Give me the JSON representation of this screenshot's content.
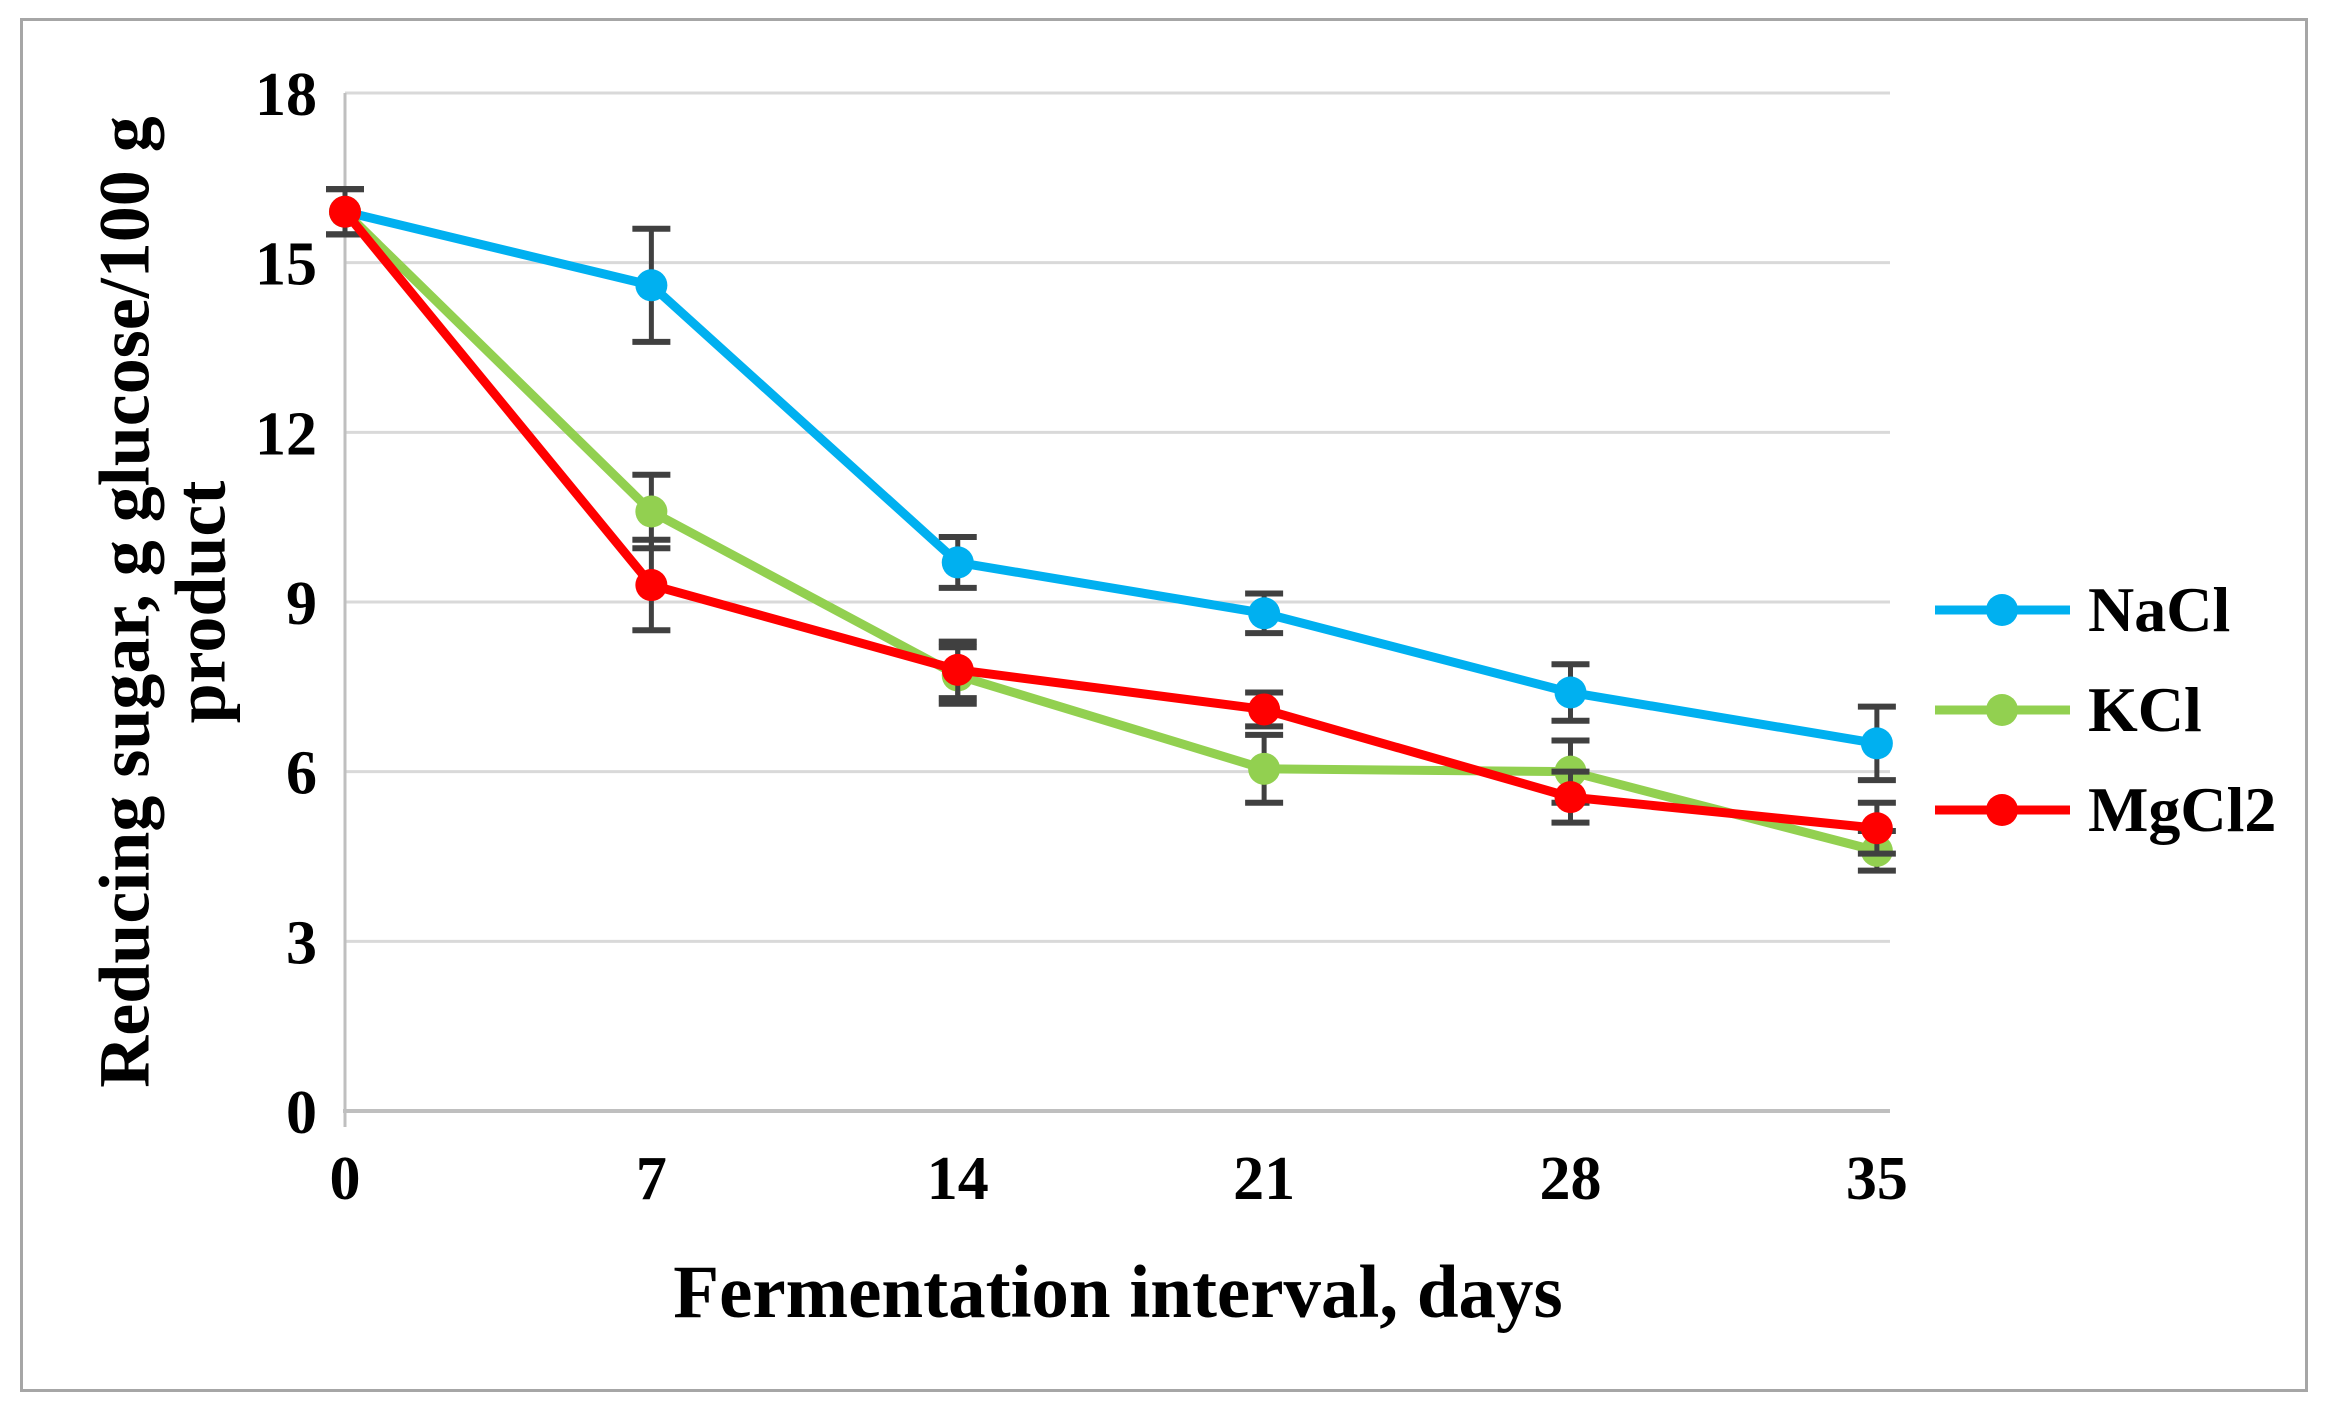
{
  "chart_data": {
    "type": "line",
    "title": "",
    "xlabel": "Fermentation interval, days",
    "ylabel": "Reducing sugar, g glucose/100 g product",
    "ylabel_line1": "Reducing sugar, g glucose/100 g",
    "ylabel_line2": "product",
    "x": [
      0,
      7,
      14,
      21,
      28,
      35
    ],
    "xticks": [
      "0",
      "7",
      "14",
      "21",
      "28",
      "35"
    ],
    "yticks": [
      0,
      3,
      6,
      9,
      12,
      15,
      18
    ],
    "xlim": [
      0,
      35.3
    ],
    "ylim": [
      0,
      18
    ],
    "grid": "horizontal",
    "legend_position": "right",
    "series": [
      {
        "name": "NaCl",
        "color": "#00b0f0",
        "values": [
          15.9,
          14.6,
          9.7,
          8.8,
          7.4,
          6.5
        ],
        "errors": [
          0.4,
          1.0,
          0.45,
          0.35,
          0.5,
          0.65
        ]
      },
      {
        "name": "KCl",
        "color": "#92d050",
        "values": [
          15.9,
          10.6,
          7.7,
          6.05,
          6.0,
          4.6
        ],
        "errors": [
          0.4,
          0.65,
          0.5,
          0.6,
          0.55,
          0.35
        ]
      },
      {
        "name": "MgCl2",
        "color": "#ff0000",
        "values": [
          15.9,
          9.3,
          7.8,
          7.1,
          5.55,
          5.0
        ],
        "errors": [
          0.4,
          0.8,
          0.5,
          0.3,
          0.45,
          0.45
        ]
      }
    ],
    "colors": {
      "gridline": "#d9d9d9",
      "axis": "#bfbfbf",
      "errorbar": "#404040",
      "text": "#000000",
      "figure_border": "#a6a6a6"
    }
  }
}
